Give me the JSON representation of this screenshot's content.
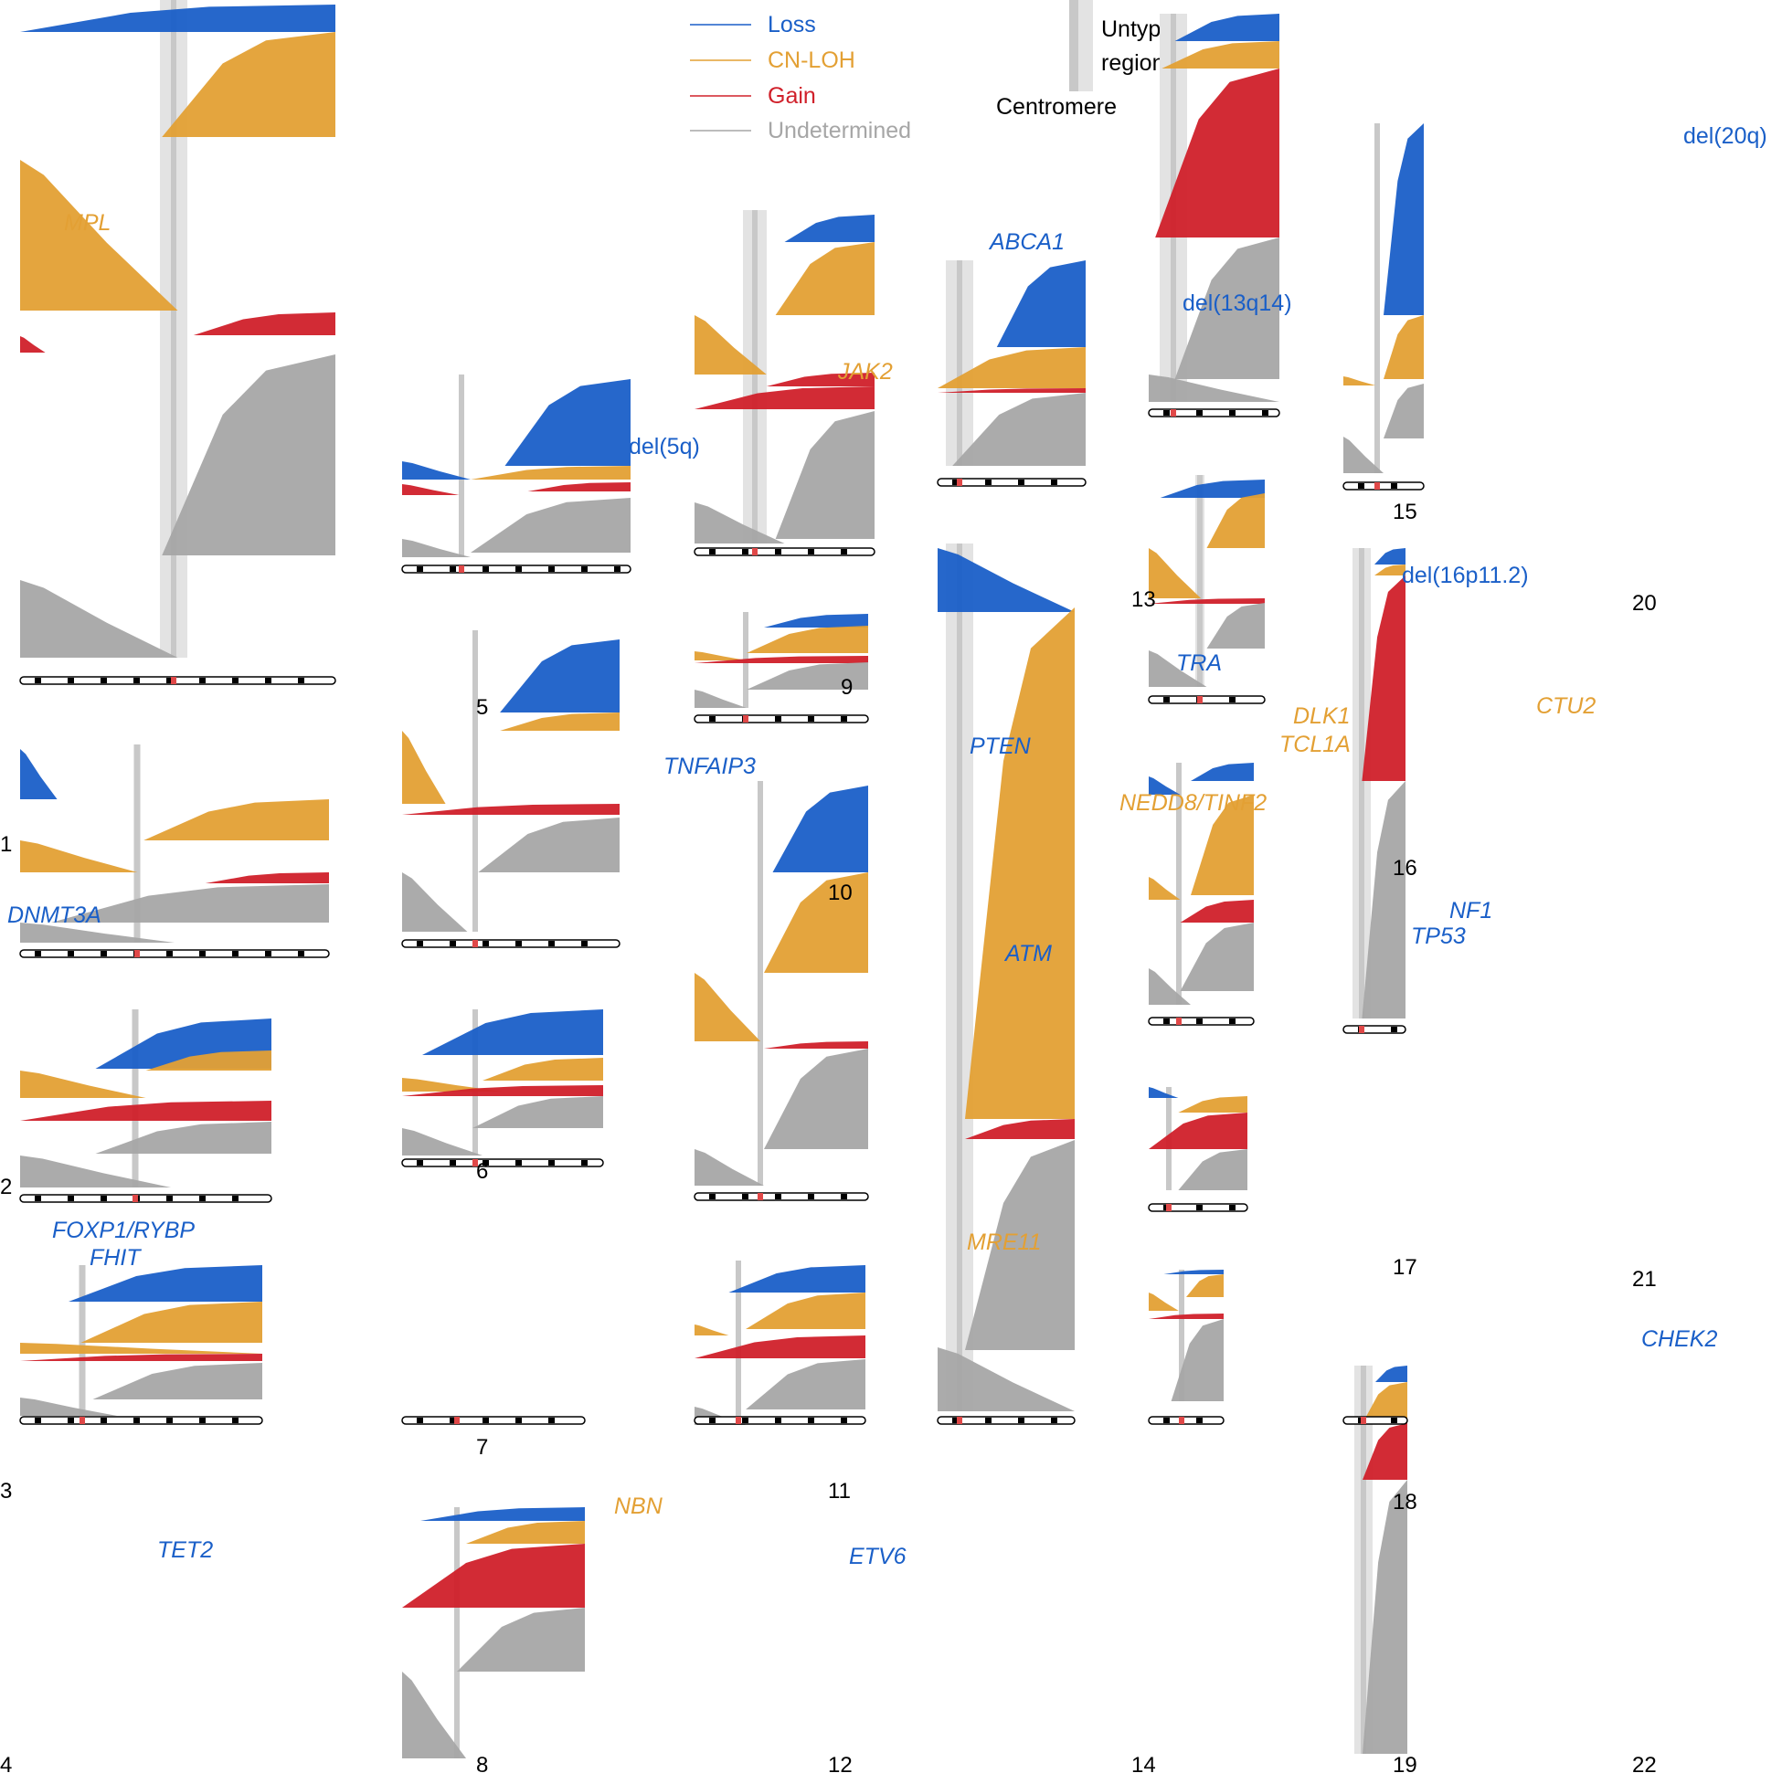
{
  "legend": {
    "items": [
      {
        "label": "Loss",
        "color": "#1a5fc8"
      },
      {
        "label": "CN-LOH",
        "color": "#e3a034"
      },
      {
        "label": "Gain",
        "color": "#d0202a"
      },
      {
        "label": "Undetermined",
        "color": "#a6a6a6"
      }
    ],
    "untyped_label_1": "Untyped",
    "untyped_label_2": "region",
    "centromere_label": "Centromere"
  },
  "colors": {
    "loss": "#1a5fc8",
    "cnloh": "#e3a034",
    "gain": "#d0202a",
    "undetermined": "#a6a6a6",
    "untyped": "#e3e3e3",
    "centromere": "#c8c8c8"
  },
  "chart_data": {
    "type": "area",
    "description_note": "",
    "chromosomes": [
      {
        "chrom": "1",
        "annotations": [
          {
            "text": "MPL",
            "class": "cnloh"
          }
        ]
      },
      {
        "chrom": "2",
        "annotations": [
          {
            "text": "DNMT3A",
            "class": "loss"
          }
        ]
      },
      {
        "chrom": "3",
        "annotations": [
          {
            "text": "FOXP1/RYBP",
            "class": "loss"
          },
          {
            "text": "FHIT",
            "class": "loss"
          }
        ]
      },
      {
        "chrom": "4",
        "annotations": [
          {
            "text": "TET2",
            "class": "loss"
          }
        ]
      },
      {
        "chrom": "5",
        "annotations": [
          {
            "text": "del(5q)",
            "class": "loss"
          }
        ]
      },
      {
        "chrom": "6",
        "annotations": [
          {
            "text": "TNFAIP3",
            "class": "loss"
          }
        ]
      },
      {
        "chrom": "7",
        "annotations": []
      },
      {
        "chrom": "8",
        "annotations": [
          {
            "text": "NBN",
            "class": "cnloh"
          }
        ]
      },
      {
        "chrom": "9",
        "annotations": [
          {
            "text": "ABCA1",
            "class": "loss"
          },
          {
            "text": "JAK2",
            "class": "cnloh"
          }
        ]
      },
      {
        "chrom": "10",
        "annotations": [
          {
            "text": "PTEN",
            "class": "loss"
          }
        ]
      },
      {
        "chrom": "11",
        "annotations": [
          {
            "text": "ATM",
            "class": "loss"
          },
          {
            "text": "MRE11",
            "class": "cnloh"
          }
        ]
      },
      {
        "chrom": "12",
        "annotations": [
          {
            "text": "ETV6",
            "class": "loss"
          }
        ]
      },
      {
        "chrom": "13",
        "annotations": [
          {
            "text": "del(13q14)",
            "class": "loss"
          }
        ]
      },
      {
        "chrom": "14",
        "annotations": [
          {
            "text": "TRA",
            "class": "loss"
          },
          {
            "text": "DLK1",
            "class": "cnloh"
          },
          {
            "text": "TCL1A",
            "class": "cnloh"
          },
          {
            "text": "NEDD8/TINF2",
            "class": "cnloh"
          }
        ]
      },
      {
        "chrom": "15",
        "annotations": []
      },
      {
        "chrom": "16",
        "annotations": [
          {
            "text": "del(16p11.2)",
            "class": "loss"
          },
          {
            "text": "CTU2",
            "class": "cnloh"
          }
        ]
      },
      {
        "chrom": "17",
        "annotations": [
          {
            "text": "NF1",
            "class": "loss"
          },
          {
            "text": "TP53",
            "class": "loss"
          }
        ]
      },
      {
        "chrom": "18",
        "annotations": []
      },
      {
        "chrom": "19",
        "annotations": []
      },
      {
        "chrom": "20",
        "annotations": [
          {
            "text": "del(20q)",
            "class": "loss"
          }
        ]
      },
      {
        "chrom": "21",
        "annotations": []
      },
      {
        "chrom": "22",
        "annotations": [
          {
            "text": "CHEK2",
            "class": "loss"
          }
        ]
      }
    ]
  }
}
